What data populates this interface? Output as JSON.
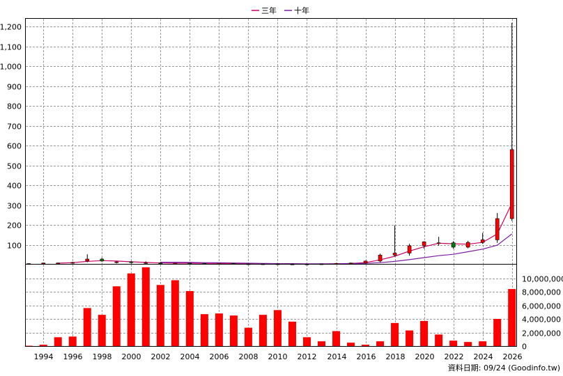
{
  "legend": [
    {
      "label": "三年",
      "color": "#cc0066"
    },
    {
      "label": "十年",
      "color": "#7b1fa2"
    }
  ],
  "source_note": "資料日期: 09/24  (Goodinfo.tw)",
  "colors": {
    "candle_up": "#ff0000",
    "candle_down": "#008000",
    "volume_bar": "#ff0000",
    "ma3": "#cc0066",
    "ma10": "#7b1fa2",
    "grid": "#9a9a9a"
  },
  "chart_data": [
    {
      "type": "candlestick",
      "title": "",
      "xlabel": "",
      "ylabel": "",
      "x_ticks": [
        1994,
        1996,
        1998,
        2000,
        2002,
        2004,
        2006,
        2008,
        2010,
        2012,
        2014,
        2016,
        2018,
        2020,
        2022,
        2024,
        2026
      ],
      "y_ticks": [
        100,
        200,
        300,
        400,
        500,
        600,
        700,
        800,
        900,
        1000,
        1100,
        1200
      ],
      "y_tick_labels": [
        "100",
        "200",
        "300",
        "400",
        "500",
        "600",
        "700",
        "800",
        "900",
        "1,000",
        "1,100",
        "1,200"
      ],
      "xlim": [
        1992.8,
        2026.3
      ],
      "ylim": [
        0,
        1240
      ],
      "grid": true,
      "legend_position": "top-center",
      "candles": [
        {
          "year": 1993,
          "open": 3,
          "high": 6,
          "low": 1,
          "close": 5
        },
        {
          "year": 1994,
          "open": 6,
          "high": 9,
          "low": 4,
          "close": 8
        },
        {
          "year": 1995,
          "open": 6,
          "high": 10,
          "low": 4,
          "close": 8
        },
        {
          "year": 1996,
          "open": 8,
          "high": 14,
          "low": 6,
          "close": 11
        },
        {
          "year": 1997,
          "open": 18,
          "high": 52,
          "low": 12,
          "close": 28
        },
        {
          "year": 1998,
          "open": 28,
          "high": 34,
          "low": 14,
          "close": 18
        },
        {
          "year": 1999,
          "open": 12,
          "high": 16,
          "low": 6,
          "close": 14
        },
        {
          "year": 2000,
          "open": 14,
          "high": 18,
          "low": 6,
          "close": 10
        },
        {
          "year": 2001,
          "open": 8,
          "high": 16,
          "low": 4,
          "close": 10
        },
        {
          "year": 2002,
          "open": 8,
          "high": 12,
          "low": 3,
          "close": 6
        },
        {
          "year": 2003,
          "open": 6,
          "high": 9,
          "low": 3,
          "close": 7
        },
        {
          "year": 2004,
          "open": 7,
          "high": 9,
          "low": 4,
          "close": 6
        },
        {
          "year": 2005,
          "open": 6,
          "high": 8,
          "low": 4,
          "close": 5
        },
        {
          "year": 2006,
          "open": 5,
          "high": 7,
          "low": 3,
          "close": 6
        },
        {
          "year": 2007,
          "open": 6,
          "high": 8,
          "low": 3,
          "close": 4
        },
        {
          "year": 2008,
          "open": 4,
          "high": 5,
          "low": 1,
          "close": 2
        },
        {
          "year": 2009,
          "open": 2,
          "high": 5,
          "low": 1,
          "close": 4
        },
        {
          "year": 2010,
          "open": 4,
          "high": 6,
          "low": 2,
          "close": 3
        },
        {
          "year": 2011,
          "open": 3,
          "high": 5,
          "low": 1,
          "close": 2
        },
        {
          "year": 2012,
          "open": 2,
          "high": 4,
          "low": 1,
          "close": 3
        },
        {
          "year": 2013,
          "open": 3,
          "high": 5,
          "low": 2,
          "close": 4
        },
        {
          "year": 2014,
          "open": 4,
          "high": 8,
          "low": 3,
          "close": 6
        },
        {
          "year": 2015,
          "open": 6,
          "high": 10,
          "low": 4,
          "close": 8
        },
        {
          "year": 2016,
          "open": 8,
          "high": 20,
          "low": 6,
          "close": 18
        },
        {
          "year": 2017,
          "open": 18,
          "high": 55,
          "low": 12,
          "close": 48
        },
        {
          "year": 2018,
          "open": 48,
          "high": 198,
          "low": 40,
          "close": 58
        },
        {
          "year": 2019,
          "open": 58,
          "high": 105,
          "low": 45,
          "close": 95
        },
        {
          "year": 2020,
          "open": 95,
          "high": 118,
          "low": 80,
          "close": 115
        },
        {
          "year": 2021,
          "open": 108,
          "high": 140,
          "low": 95,
          "close": 110
        },
        {
          "year": 2022,
          "open": 110,
          "high": 118,
          "low": 80,
          "close": 88
        },
        {
          "year": 2023,
          "open": 88,
          "high": 120,
          "low": 82,
          "close": 112
        },
        {
          "year": 2024,
          "open": 112,
          "high": 160,
          "low": 105,
          "close": 125
        },
        {
          "year": 2025,
          "open": 125,
          "high": 260,
          "low": 110,
          "close": 232
        },
        {
          "year": 2026,
          "open": 232,
          "high": 1220,
          "low": 220,
          "close": 580
        }
      ],
      "series": [
        {
          "name": "三年",
          "x": [
            1995,
            1996,
            1997,
            1998,
            1999,
            2000,
            2001,
            2002,
            2003,
            2004,
            2005,
            2006,
            2007,
            2008,
            2009,
            2010,
            2011,
            2012,
            2013,
            2014,
            2015,
            2016,
            2017,
            2018,
            2019,
            2020,
            2021,
            2022,
            2023,
            2024,
            2025,
            2026
          ],
          "values": [
            7,
            10,
            16,
            20,
            18,
            14,
            11,
            8,
            7,
            7,
            6,
            6,
            5,
            4,
            3,
            3,
            3,
            3,
            3,
            4,
            6,
            10,
            24,
            42,
            68,
            90,
            108,
            105,
            103,
            112,
            155,
            310
          ]
        },
        {
          "name": "十年",
          "x": [
            2002,
            2003,
            2004,
            2005,
            2006,
            2007,
            2008,
            2009,
            2010,
            2011,
            2012,
            2013,
            2014,
            2015,
            2016,
            2017,
            2018,
            2019,
            2020,
            2021,
            2022,
            2023,
            2024,
            2025,
            2026
          ],
          "values": [
            12,
            12,
            11,
            10,
            9,
            8,
            7,
            6,
            5,
            5,
            4,
            4,
            4,
            5,
            6,
            10,
            16,
            25,
            35,
            45,
            52,
            65,
            78,
            98,
            155
          ]
        }
      ]
    },
    {
      "type": "bar",
      "title": "",
      "xlabel": "",
      "ylabel": "",
      "categories": [
        1993,
        1994,
        1995,
        1996,
        1997,
        1998,
        1999,
        2000,
        2001,
        2002,
        2003,
        2004,
        2005,
        2006,
        2007,
        2008,
        2009,
        2010,
        2011,
        2012,
        2013,
        2014,
        2015,
        2016,
        2017,
        2018,
        2019,
        2020,
        2021,
        2022,
        2023,
        2024,
        2025,
        2026
      ],
      "values": [
        50000,
        200000,
        1300000,
        1400000,
        5600000,
        4600000,
        8800000,
        10700000,
        11600000,
        9000000,
        9700000,
        8100000,
        4700000,
        4800000,
        4500000,
        2700000,
        4600000,
        5300000,
        3600000,
        1300000,
        700000,
        2200000,
        500000,
        200000,
        700000,
        3400000,
        2300000,
        3700000,
        1700000,
        800000,
        600000,
        700000,
        4000000,
        8400000
      ],
      "y_ticks": [
        0,
        2000000,
        4000000,
        6000000,
        8000000,
        10000000
      ],
      "y_tick_labels": [
        "0",
        "2,000,000",
        "4,000,000",
        "6,000,000",
        "8,000,000",
        "10,000,000"
      ],
      "ylim": [
        0,
        12000000
      ],
      "grid": true
    }
  ]
}
